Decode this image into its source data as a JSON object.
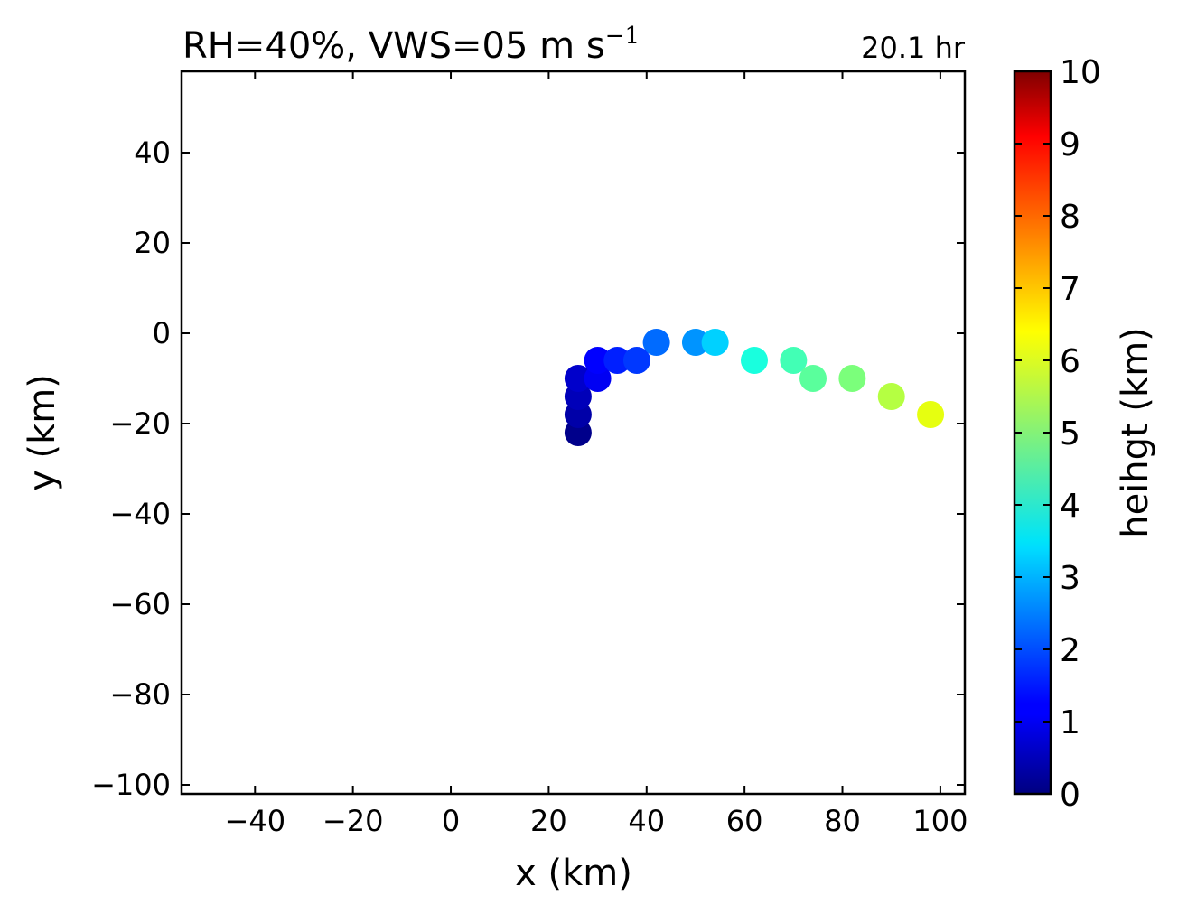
{
  "chart_data": {
    "type": "scatter",
    "title": "RH=40%, VWS=05 m s",
    "title_superscript": "−1",
    "time_label": "20.1 hr",
    "time_label_color": "#0000ff",
    "xlabel": "x (km)",
    "ylabel": "y (km)",
    "xlim": [
      -55,
      105
    ],
    "ylim": [
      -102,
      58
    ],
    "xticks": [
      -40,
      -20,
      0,
      20,
      40,
      60,
      80,
      100
    ],
    "yticks": [
      -100,
      -80,
      -60,
      -40,
      -20,
      0,
      20,
      40
    ],
    "xtick_labels": [
      "−40",
      "−20",
      "0",
      "20",
      "40",
      "60",
      "80",
      "100"
    ],
    "ytick_labels": [
      "−100",
      "−80",
      "−60",
      "−40",
      "−20",
      "0",
      "20",
      "40"
    ],
    "grid": false,
    "colormap": "jet",
    "colorbar": {
      "label": "heihgt (km)",
      "min": 0,
      "max": 10,
      "ticks": [
        0,
        1,
        2,
        3,
        4,
        5,
        6,
        7,
        8,
        9,
        10
      ],
      "tick_labels": [
        "0",
        "1",
        "2",
        "3",
        "4",
        "5",
        "6",
        "7",
        "8",
        "9",
        "10"
      ]
    },
    "points": [
      {
        "x": 26,
        "y": -22,
        "height": 0.1
      },
      {
        "x": 26,
        "y": -18,
        "height": 0.35
      },
      {
        "x": 26,
        "y": -14,
        "height": 0.5
      },
      {
        "x": 26,
        "y": -10,
        "height": 0.65
      },
      {
        "x": 30,
        "y": -10,
        "height": 1.0
      },
      {
        "x": 30,
        "y": -6,
        "height": 1.15
      },
      {
        "x": 34,
        "y": -6,
        "height": 1.55
      },
      {
        "x": 38,
        "y": -6,
        "height": 1.8
      },
      {
        "x": 42,
        "y": -2,
        "height": 2.3
      },
      {
        "x": 50,
        "y": -2,
        "height": 2.7
      },
      {
        "x": 54,
        "y": -2,
        "height": 3.3
      },
      {
        "x": 62,
        "y": -6,
        "height": 3.8
      },
      {
        "x": 70,
        "y": -6,
        "height": 4.3
      },
      {
        "x": 74,
        "y": -10,
        "height": 4.6
      },
      {
        "x": 82,
        "y": -10,
        "height": 5.0
      },
      {
        "x": 90,
        "y": -14,
        "height": 5.7
      },
      {
        "x": 98,
        "y": -18,
        "height": 6.3
      }
    ]
  }
}
